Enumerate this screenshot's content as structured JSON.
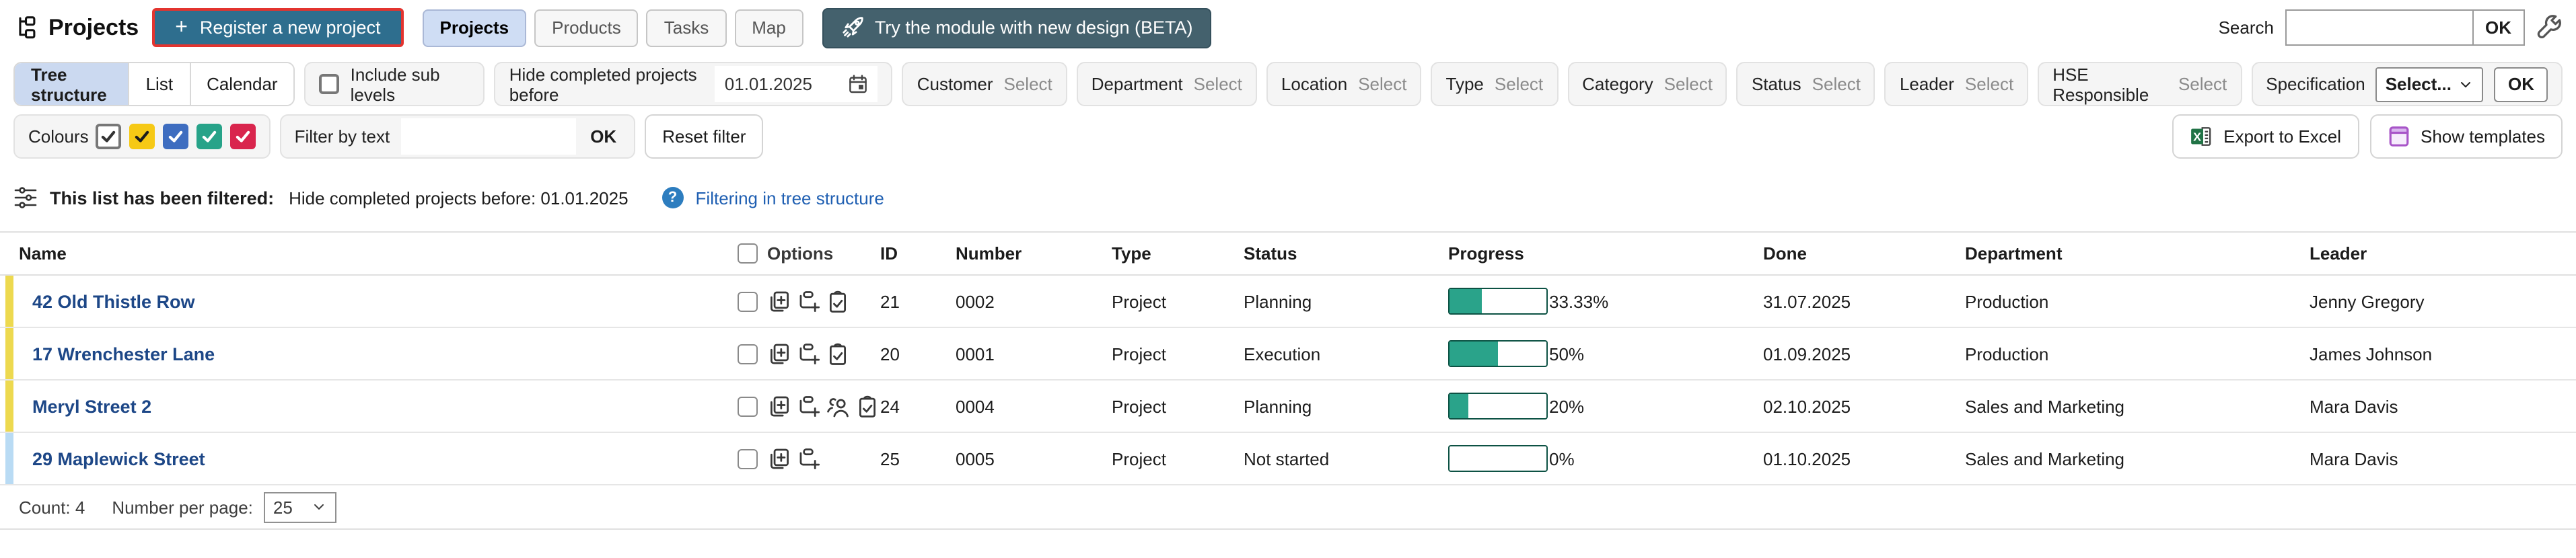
{
  "header": {
    "title": "Projects",
    "register_label": "Register a new project",
    "register_plus": "+",
    "tabs": [
      {
        "label": "Projects",
        "active": true
      },
      {
        "label": "Products",
        "active": false
      },
      {
        "label": "Tasks",
        "active": false
      },
      {
        "label": "Map",
        "active": false
      }
    ],
    "beta_label": "Try the module with new design (BETA)",
    "search_label": "Search",
    "search_value": "",
    "search_ok": "OK",
    "icons": {
      "app": "tree-hierarchy-icon",
      "beta": "rocket-icon",
      "settings": "wrench-icon"
    },
    "colors": {
      "register_bg": "#2e6e8e",
      "register_border": "#e3342f",
      "beta_bg": "#44616d",
      "active_tab_bg": "#cfddf4"
    }
  },
  "filters": {
    "view_tabs": [
      {
        "label": "Tree structure",
        "active": true
      },
      {
        "label": "List",
        "active": false
      },
      {
        "label": "Calendar",
        "active": false
      }
    ],
    "include_sub_levels": "Include sub levels",
    "hide_completed_label": "Hide completed projects before",
    "hide_completed_date": "01.01.2025",
    "select_filters": [
      {
        "label": "Customer",
        "action": "Select"
      },
      {
        "label": "Department",
        "action": "Select"
      },
      {
        "label": "Location",
        "action": "Select"
      },
      {
        "label": "Type",
        "action": "Select"
      },
      {
        "label": "Category",
        "action": "Select"
      },
      {
        "label": "Status",
        "action": "Select"
      },
      {
        "label": "Leader",
        "action": "Select"
      },
      {
        "label": "HSE Responsible",
        "action": "Select"
      }
    ],
    "specification": {
      "label": "Specification",
      "value": "Select...",
      "ok": "OK"
    },
    "colours_label": "Colours",
    "colour_checks": [
      {
        "name": "default",
        "color": "#ffffff",
        "check": "#333333"
      },
      {
        "name": "yellow",
        "color": "#f6c915",
        "check": "#1c1c1c"
      },
      {
        "name": "blue",
        "color": "#3e6dc0",
        "check": "#ffffff"
      },
      {
        "name": "green",
        "color": "#27a389",
        "check": "#ffffff"
      },
      {
        "name": "red",
        "color": "#d9254d",
        "check": "#ffffff"
      }
    ],
    "filter_by_text_label": "Filter by text",
    "filter_by_text_value": "",
    "filter_ok": "OK",
    "reset_filter": "Reset filter",
    "export_excel": "Export to Excel",
    "show_templates": "Show templates"
  },
  "banner": {
    "bold": "This list has been filtered:",
    "text": "Hide completed projects before: 01.01.2025",
    "help_icon": "?",
    "link": "Filtering in tree structure"
  },
  "table": {
    "columns": {
      "name": "Name",
      "options": "Options",
      "id": "ID",
      "number": "Number",
      "type": "Type",
      "status": "Status",
      "progress": "Progress",
      "done": "Done",
      "department": "Department",
      "leader": "Leader"
    },
    "rows": [
      {
        "name": "42 Old Thistle Row",
        "strip_color": "#edd94f",
        "options_icons": [
          "duplicate",
          "add-subproject",
          "checklist"
        ],
        "id": "21",
        "number": "0002",
        "type": "Project",
        "status": "Planning",
        "progress": 33.33,
        "progress_label": "33.33%",
        "done": "31.07.2025",
        "department": "Production",
        "leader": "Jenny Gregory"
      },
      {
        "name": "17 Wrenchester Lane",
        "strip_color": "#edd94f",
        "options_icons": [
          "duplicate",
          "add-subproject",
          "checklist"
        ],
        "id": "20",
        "number": "0001",
        "type": "Project",
        "status": "Execution",
        "progress": 50,
        "progress_label": "50%",
        "done": "01.09.2025",
        "department": "Production",
        "leader": "James Johnson"
      },
      {
        "name": "Meryl Street 2",
        "strip_color": "#edd94f",
        "options_icons": [
          "duplicate",
          "add-subproject",
          "members",
          "checklist"
        ],
        "id": "24",
        "number": "0004",
        "type": "Project",
        "status": "Planning",
        "progress": 20,
        "progress_label": "20%",
        "done": "02.10.2025",
        "department": "Sales and Marketing",
        "leader": "Mara Davis"
      },
      {
        "name": "29 Maplewick Street",
        "strip_color": "#b9dbf4",
        "options_icons": [
          "duplicate",
          "add-subproject"
        ],
        "id": "25",
        "number": "0005",
        "type": "Project",
        "status": "Not started",
        "progress": 0,
        "progress_label": "0%",
        "done": "01.10.2025",
        "department": "Sales and Marketing",
        "leader": "Mara Davis"
      }
    ],
    "progress_color": "#2aa38a"
  },
  "footer": {
    "count_label": "Count: 4",
    "per_page_label": "Number per page:",
    "per_page_value": "25"
  }
}
